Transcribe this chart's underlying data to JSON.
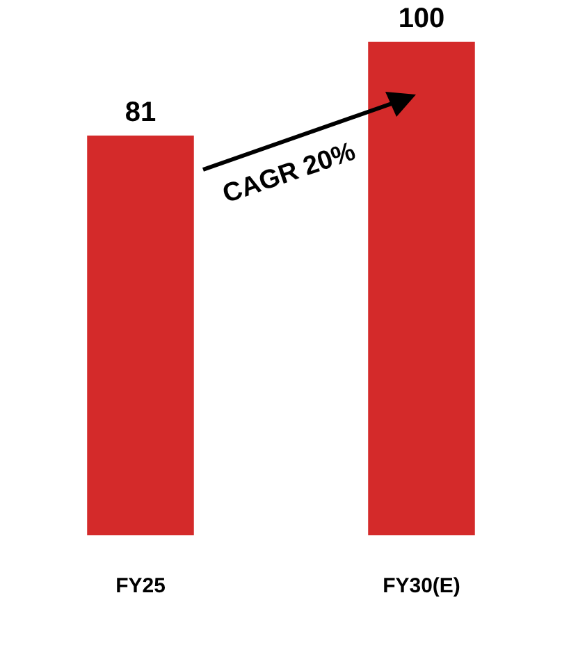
{
  "chart_data": {
    "type": "bar",
    "categories": [
      "FY25",
      "FY30(E)"
    ],
    "values": [
      81,
      100
    ],
    "color": "#d42a2a",
    "data_labels": true,
    "grid": false,
    "legend": false,
    "tick_labels": "x",
    "annotations": [
      "CAGR 20%"
    ]
  }
}
